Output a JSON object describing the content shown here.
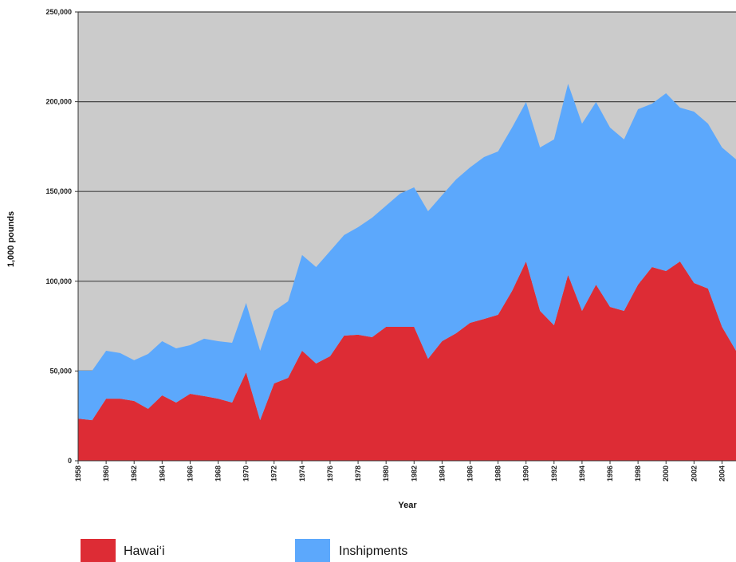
{
  "chart_data": {
    "type": "stacked_area",
    "x_label": "Year",
    "y_label": "1,000 pounds",
    "x": [
      1958,
      1959,
      1960,
      1961,
      1962,
      1963,
      1964,
      1965,
      1966,
      1967,
      1968,
      1969,
      1970,
      1971,
      1972,
      1973,
      1974,
      1975,
      1976,
      1977,
      1978,
      1979,
      1980,
      1981,
      1982,
      1983,
      1984,
      1985,
      1986,
      1987,
      1988,
      1989,
      1990,
      1991,
      1992,
      1993,
      1994,
      1995,
      1996,
      1997,
      1998,
      1999,
      2000,
      2001,
      2002,
      2003,
      2004,
      2005
    ],
    "series": [
      {
        "name": "Hawai‘i",
        "color": "#dd2c35",
        "values": [
          23500,
          22600,
          34600,
          34600,
          33300,
          28900,
          36400,
          32400,
          37300,
          36000,
          34600,
          32400,
          49300,
          22600,
          43100,
          46200,
          61300,
          54200,
          58200,
          69700,
          70200,
          68800,
          74600,
          74600,
          74600,
          56800,
          66600,
          71000,
          76800,
          79000,
          81300,
          94600,
          111000,
          83500,
          75500,
          103500,
          83500,
          98100,
          85700,
          83500,
          98100,
          107900,
          105700,
          111000,
          99000,
          95900,
          74600,
          61300
        ]
      },
      {
        "name": "Inshipments",
        "color": "#5ca8fc",
        "values": [
          26700,
          27600,
          26700,
          25400,
          22700,
          30600,
          30200,
          30200,
          27100,
          32000,
          32000,
          33300,
          38600,
          38700,
          40400,
          42600,
          53300,
          53700,
          58600,
          56000,
          59900,
          66600,
          67500,
          74200,
          77700,
          82200,
          81300,
          85700,
          86600,
          90200,
          91000,
          91000,
          88800,
          91000,
          103500,
          106500,
          104300,
          101700,
          99900,
          95500,
          97700,
          91000,
          99000,
          85700,
          95500,
          91900,
          99900,
          106600
        ]
      }
    ],
    "xlim": [
      1958,
      2005
    ],
    "xticks": [
      1958,
      1960,
      1962,
      1964,
      1966,
      1968,
      1970,
      1972,
      1974,
      1976,
      1978,
      1980,
      1982,
      1984,
      1986,
      1988,
      1990,
      1992,
      1994,
      1996,
      1998,
      2000,
      2002,
      2004
    ],
    "ylim": [
      0,
      250000
    ],
    "yticks": [
      0,
      {
        "value": 50000,
        "label": "50,000"
      },
      {
        "value": 100000,
        "label": "100,000"
      },
      {
        "value": 150000,
        "label": "150,000"
      },
      {
        "value": 200000,
        "label": "200,000"
      },
      {
        "value": 250000,
        "label": "250,000"
      }
    ],
    "grid": true,
    "legend": "bottom"
  }
}
